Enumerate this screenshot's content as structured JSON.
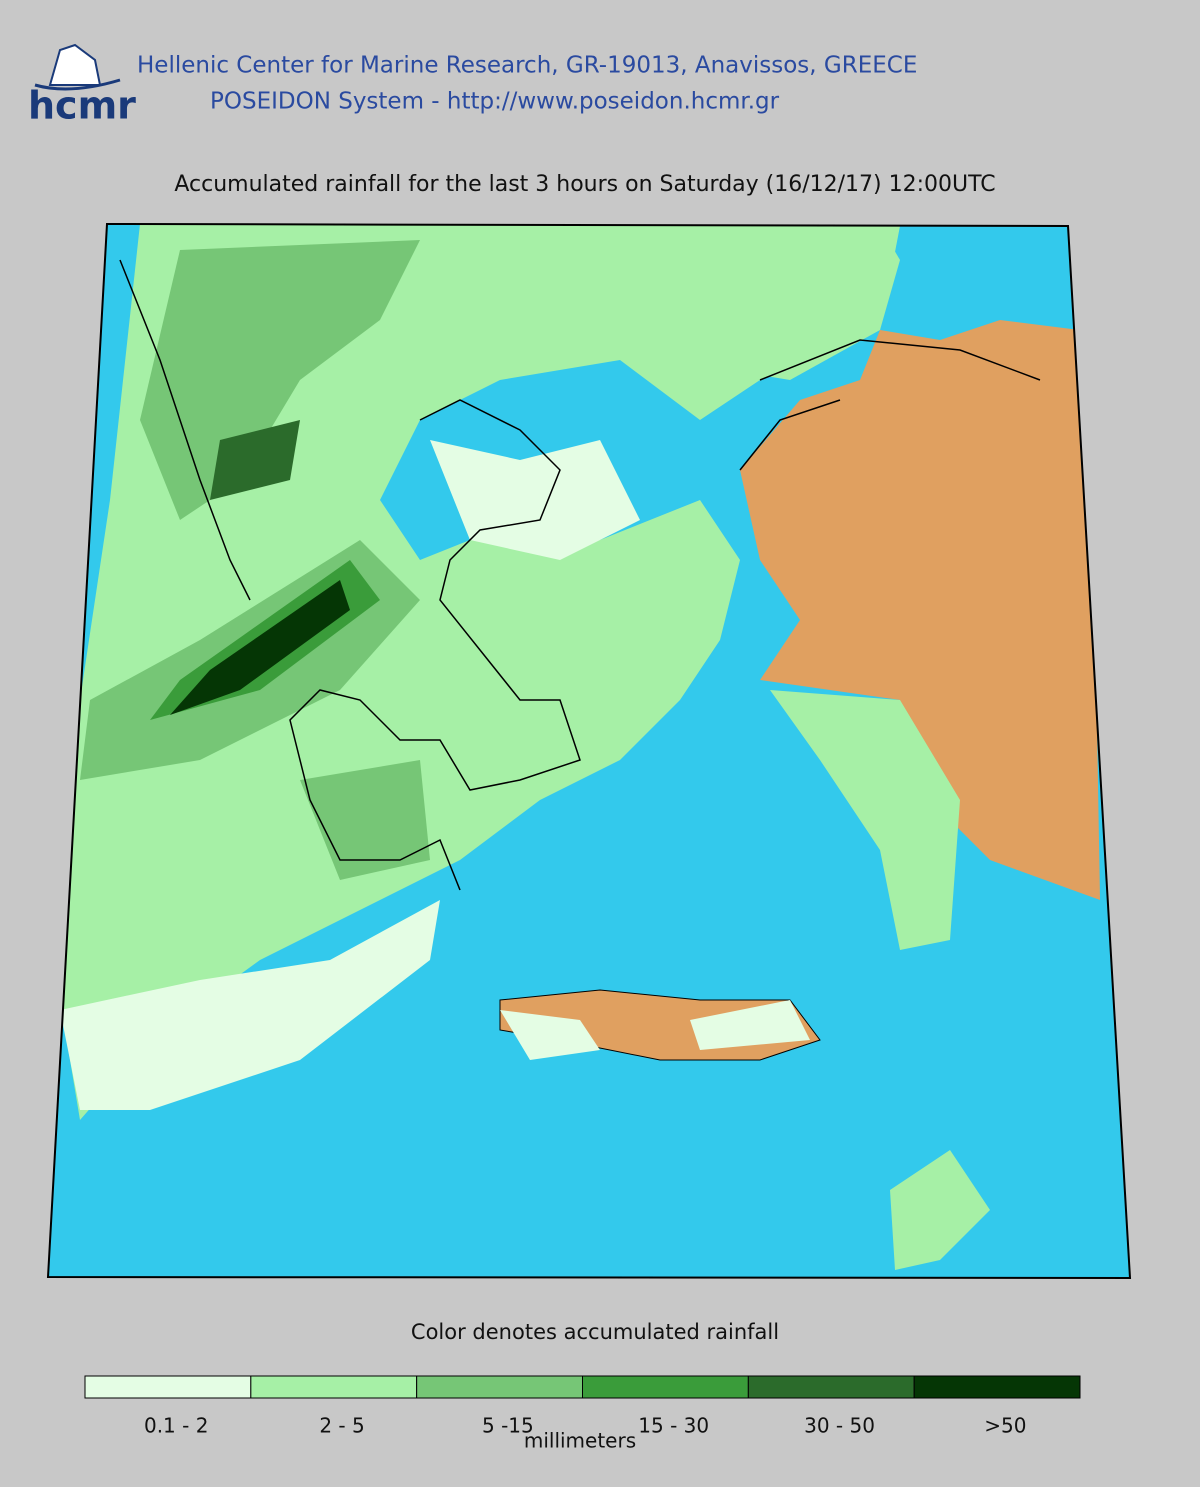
{
  "header": {
    "logo": "hcmr",
    "line1": "Hellenic Center for Marine Research, GR-19013, Anavissos, GREECE",
    "line2": "POSEIDON System - http://www.poseidon.hcmr.gr"
  },
  "map": {
    "title": "Accumulated rainfall for the last 3 hours on Saturday (16/12/17) 12:00UTC"
  },
  "legend": {
    "caption": "Color denotes accumulated rainfall",
    "unit": "millimeters",
    "items": [
      {
        "label": "0.1 - 2",
        "color": "#e4fde4"
      },
      {
        "label": "2 - 5",
        "color": "#a6f0a6"
      },
      {
        "label": "5 -15",
        "color": "#76c676"
      },
      {
        "label": "15 - 30",
        "color": "#3a9c3a"
      },
      {
        "label": "30 - 50",
        "color": "#2b6b2b"
      },
      {
        "label": ">50",
        "color": "#053605"
      }
    ]
  }
}
